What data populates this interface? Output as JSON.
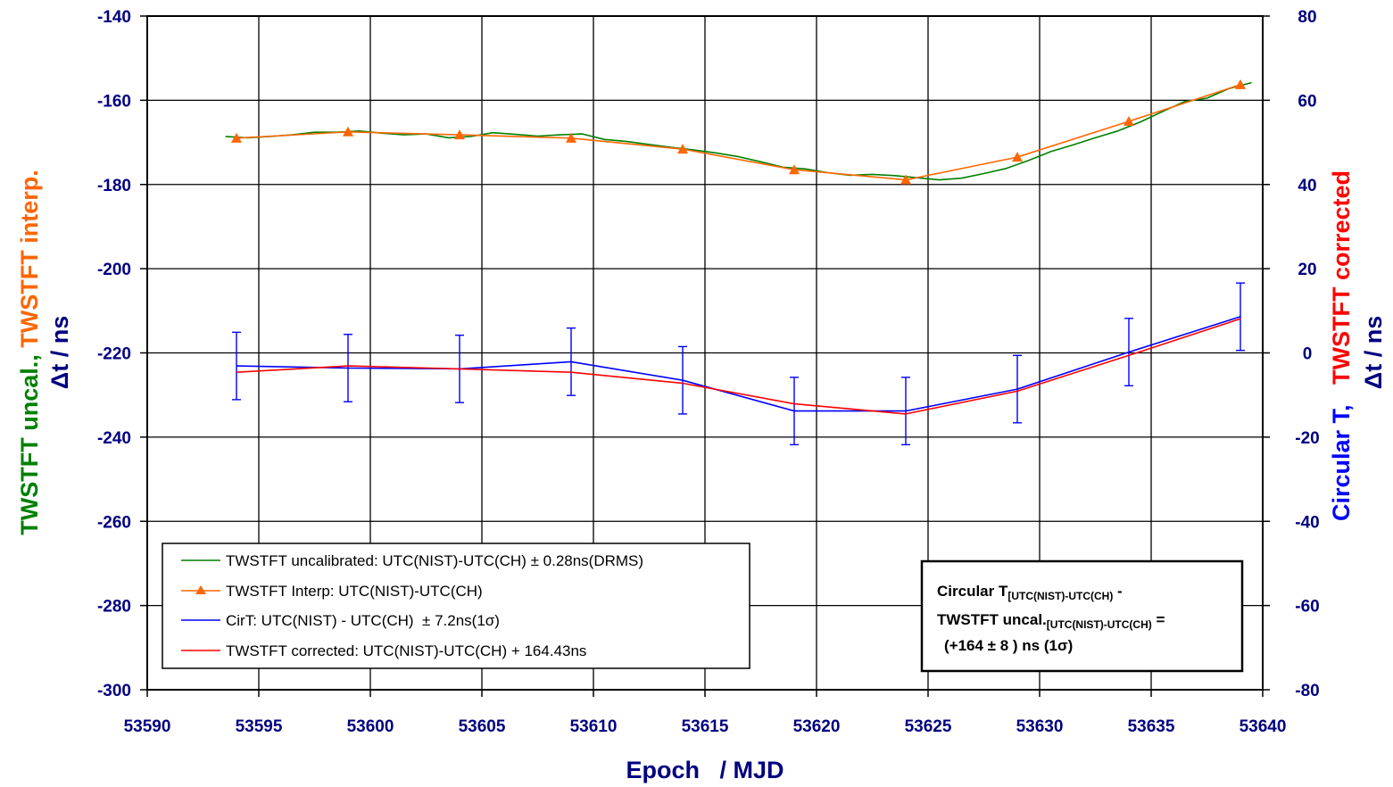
{
  "chart_data": {
    "type": "line",
    "xlabel": "Epoch   / MJD",
    "xlim": [
      53590,
      53640
    ],
    "x_ticks": [
      "53590",
      "53595",
      "53600",
      "53605",
      "53610",
      "53615",
      "53620",
      "53625",
      "53630",
      "53635",
      "53640"
    ],
    "y_left": {
      "lim": [
        -300,
        -140
      ],
      "ticks": [
        "-140",
        "-160",
        "-180",
        "-200",
        "-220",
        "-240",
        "-260",
        "-280",
        "-300"
      ],
      "label_parts": [
        {
          "text": "TWSTFT uncal., ",
          "color": "#008000"
        },
        {
          "text": "TWSTFT interp.",
          "color": "#FF6600"
        }
      ],
      "label2": "Δt / ns",
      "label2_color": "#000080"
    },
    "y_right": {
      "lim": [
        -80,
        80
      ],
      "ticks": [
        "80",
        "60",
        "40",
        "20",
        "0",
        "-20",
        "-40",
        "-60",
        "-80"
      ],
      "label_parts": [
        {
          "text": "Circular T,   ",
          "color": "#0000FF"
        },
        {
          "text": "TWSTFT corrected",
          "color": "#FF0000"
        }
      ],
      "label2": "Δt / ns",
      "label2_color": "#000080"
    },
    "grid": true,
    "series": [
      {
        "name": "TWSTFT uncalibrated: UTC(NIST)-UTC(CH) ± 0.28ns(DRMS)",
        "color": "#008000",
        "axis": "left",
        "marker": "none",
        "x": [
          53593.5,
          53594.5,
          53595.5,
          53596.5,
          53597.5,
          53598.5,
          53599.5,
          53600.5,
          53601.5,
          53602.5,
          53603.5,
          53604.5,
          53605.5,
          53606.5,
          53607.5,
          53608.5,
          53609.5,
          53610.5,
          53611.5,
          53612.5,
          53613.5,
          53614.5,
          53615.5,
          53616.5,
          53617.5,
          53618.5,
          53619.5,
          53620.5,
          53621.5,
          53622.5,
          53623.5,
          53624.5,
          53625.5,
          53626.5,
          53627.5,
          53628.5,
          53629.5,
          53630.5,
          53631.5,
          53632.5,
          53633.5,
          53634.5,
          53635.5,
          53636.5,
          53637.5,
          53638.5,
          53639.5
        ],
        "y": [
          -168.6,
          -168.9,
          -168.6,
          -168.2,
          -167.6,
          -167.6,
          -167.3,
          -167.8,
          -168.2,
          -168.0,
          -168.9,
          -168.6,
          -167.7,
          -168.1,
          -168.5,
          -168.2,
          -168.0,
          -169.3,
          -169.8,
          -170.5,
          -171.2,
          -171.8,
          -172.5,
          -173.4,
          -174.6,
          -175.9,
          -176.3,
          -177.2,
          -177.8,
          -177.6,
          -177.9,
          -178.4,
          -178.9,
          -178.5,
          -177.4,
          -176.2,
          -174.3,
          -172.2,
          -170.6,
          -168.9,
          -167.3,
          -165.2,
          -162.7,
          -160.3,
          -159.5,
          -157.2,
          -155.8
        ]
      },
      {
        "name": "TWSTFT Interp: UTC(NIST)-UTC(CH)",
        "color": "#FF6600",
        "axis": "left",
        "marker": "triangle",
        "x": [
          53594,
          53599,
          53604,
          53609,
          53614,
          53619,
          53624,
          53629,
          53634,
          53639
        ],
        "y": [
          -169.0,
          -167.5,
          -168.2,
          -169.0,
          -171.6,
          -176.5,
          -178.9,
          -173.5,
          -165.0,
          -156.3
        ]
      },
      {
        "name": "CirT: UTC(NIST) - UTC(CH)  ± 7.2ns(1σ)",
        "color": "#0000FF",
        "axis": "right",
        "marker": "errorbar",
        "error": 8,
        "x": [
          53594,
          53599,
          53604,
          53609,
          53614,
          53619,
          53624,
          53629,
          53634,
          53639
        ],
        "y": [
          -3.1,
          -3.6,
          -3.8,
          -2.1,
          -6.5,
          -13.8,
          -13.8,
          -8.6,
          0.2,
          8.6
        ]
      },
      {
        "name": "TWSTFT corrected: UTC(NIST)-UTC(CH) + 164.43ns",
        "color": "#FF0000",
        "axis": "right",
        "marker": "none",
        "x": [
          53594,
          53599,
          53604,
          53609,
          53614,
          53619,
          53624,
          53629,
          53634,
          53639
        ],
        "y": [
          -4.6,
          -3.1,
          -3.8,
          -4.6,
          -7.2,
          -12.1,
          -14.5,
          -9.1,
          -0.6,
          8.1
        ]
      }
    ],
    "annotation": {
      "line1_a": "Circular T",
      "line1_sub": "[UTC(NIST)-UTC(CH)",
      "line1_b": " -",
      "line2_a": "TWSTFT uncal.",
      "line2_sub": "[UTC(NIST)-UTC(CH)",
      "line2_b": " =",
      "line3": "(+164 ± 8 ) ns (1σ)"
    }
  }
}
